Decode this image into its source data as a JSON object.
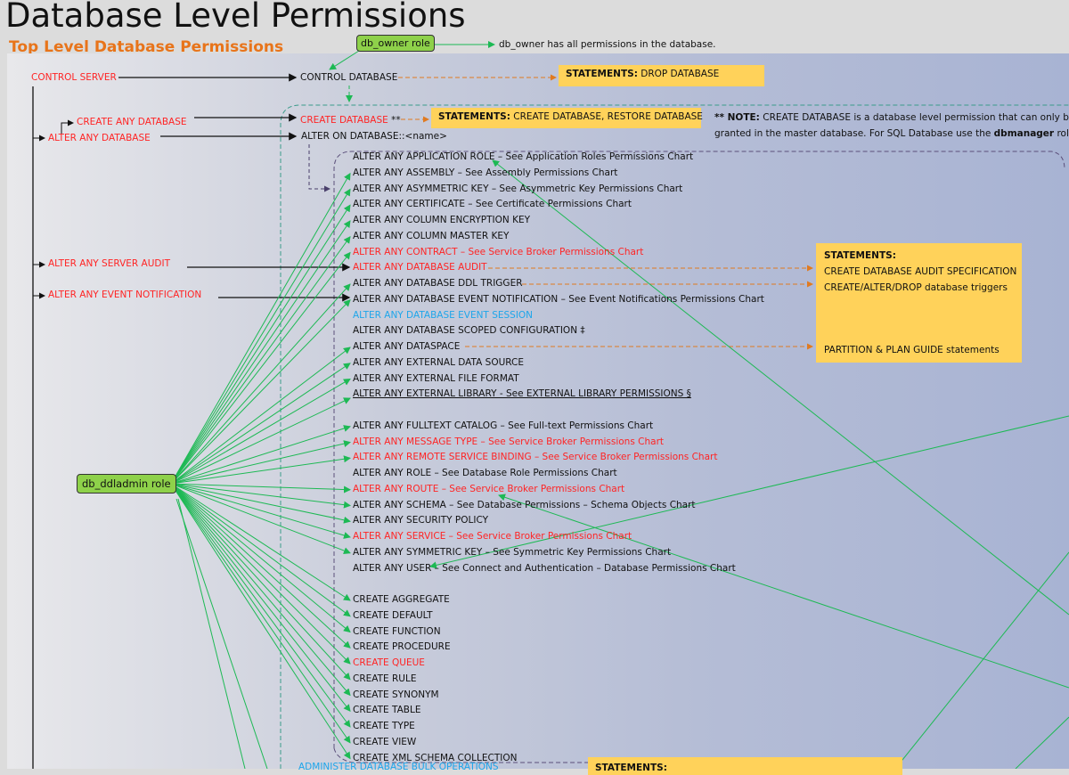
{
  "title": "Database Level Permissions",
  "subtitle": "Top Level Database Permissions",
  "roles": {
    "db_owner": "db_owner role",
    "db_owner_note": "db_owner has all permissions in the database.",
    "db_ddladmin": "db_ddladmin role"
  },
  "server_perms": {
    "control_server": "CONTROL SERVER",
    "create_any_database": "CREATE ANY DATABASE",
    "alter_any_database": "ALTER ANY DATABASE",
    "alter_any_server_audit": "ALTER ANY SERVER AUDIT",
    "alter_any_event_notification": "ALTER ANY EVENT NOTIFICATION"
  },
  "db_perms": {
    "control_database": "CONTROL DATABASE",
    "create_database": "CREATE DATABASE",
    "create_database_mark": "**",
    "alter_on_database": "ALTER ON DATABASE::<name>"
  },
  "statements": {
    "label": "STATEMENTS:",
    "drop": "DROP DATABASE",
    "create": "CREATE DATABASE, RESTORE DATABASE",
    "audit_box": [
      "CREATE DATABASE AUDIT SPECIFICATION",
      "CREATE/ALTER/DROP database triggers",
      "PARTITION & PLAN GUIDE statements"
    ]
  },
  "note": {
    "prefix": "** NOTE:",
    "line1": "CREATE DATABASE is a database level permission that can only be",
    "line2a": "granted in the master database. For SQL Database use the",
    "line2b": "dbmanager",
    "line2c": "role."
  },
  "colors": {
    "black": "#111111",
    "red": "#ff2424",
    "blue": "#1ea6ea",
    "role": "#8ed14a",
    "statement": "#ffd25a",
    "arrow_green": "#1db954",
    "arrow_orange": "#e07a20"
  },
  "alter_group_1": [
    {
      "text": "ALTER ANY APPLICATION ROLE – See Application Roles Permissions Chart",
      "color": "black"
    },
    {
      "text": "ALTER ANY ASSEMBLY – See Assembly Permissions Chart",
      "color": "black"
    },
    {
      "text": "ALTER ANY ASYMMETRIC KEY – See Asymmetric Key Permissions Chart",
      "color": "black"
    },
    {
      "text": "ALTER ANY CERTIFICATE – See Certificate Permissions Chart",
      "color": "black"
    },
    {
      "text": "ALTER ANY COLUMN ENCRYPTION KEY",
      "color": "black"
    },
    {
      "text": "ALTER ANY COLUMN MASTER KEY",
      "color": "black"
    },
    {
      "text": "ALTER ANY CONTRACT – See Service Broker Permissions Chart",
      "color": "red"
    },
    {
      "text": "ALTER ANY DATABASE AUDIT",
      "color": "red"
    },
    {
      "text": "ALTER ANY DATABASE DDL TRIGGER",
      "color": "black"
    },
    {
      "text": "ALTER ANY DATABASE EVENT NOTIFICATION – See Event Notifications Permissions Chart",
      "color": "black"
    },
    {
      "text": "ALTER ANY DATABASE EVENT SESSION",
      "color": "blue"
    },
    {
      "text": "ALTER ANY DATABASE SCOPED CONFIGURATION ‡",
      "color": "black"
    },
    {
      "text": "ALTER ANY DATASPACE",
      "color": "black"
    },
    {
      "text": "ALTER ANY EXTERNAL DATA SOURCE",
      "color": "black"
    },
    {
      "text": "ALTER ANY EXTERNAL FILE FORMAT",
      "color": "black"
    },
    {
      "text": "ALTER ANY EXTERNAL LIBRARY - See EXTERNAL LIBRARY PERMISSIONS §",
      "color": "black",
      "underline": true
    }
  ],
  "alter_group_2": [
    {
      "text": "ALTER ANY FULLTEXT CATALOG – See Full-text Permissions Chart",
      "color": "black"
    },
    {
      "text": "ALTER ANY MESSAGE TYPE – See Service Broker Permissions Chart",
      "color": "red"
    },
    {
      "text": "ALTER ANY REMOTE SERVICE BINDING – See Service Broker Permissions Chart",
      "color": "red"
    },
    {
      "text": "ALTER ANY ROLE – See Database Role Permissions Chart",
      "color": "black"
    },
    {
      "text": "ALTER ANY ROUTE – See Service Broker Permissions Chart",
      "color": "red"
    },
    {
      "text": "ALTER ANY SCHEMA – See Database Permissions – Schema Objects Chart",
      "color": "black"
    },
    {
      "text": "ALTER ANY SECURITY POLICY",
      "color": "black"
    },
    {
      "text": "ALTER ANY SERVICE – See Service Broker Permissions Chart",
      "color": "red"
    },
    {
      "text": "ALTER ANY SYMMETRIC KEY – See Symmetric Key Permissions Chart",
      "color": "black"
    },
    {
      "text": "ALTER ANY USER – See Connect and Authentication – Database Permissions Chart",
      "color": "black"
    }
  ],
  "create_group": [
    {
      "text": "CREATE AGGREGATE",
      "color": "black"
    },
    {
      "text": "CREATE DEFAULT",
      "color": "black"
    },
    {
      "text": "CREATE FUNCTION",
      "color": "black"
    },
    {
      "text": "CREATE PROCEDURE",
      "color": "black"
    },
    {
      "text": "CREATE QUEUE",
      "color": "red"
    },
    {
      "text": "CREATE RULE",
      "color": "black"
    },
    {
      "text": "CREATE SYNONYM",
      "color": "black"
    },
    {
      "text": "CREATE TABLE",
      "color": "black"
    },
    {
      "text": "CREATE TYPE",
      "color": "black"
    },
    {
      "text": "CREATE VIEW",
      "color": "black"
    },
    {
      "text": "CREATE XML SCHEMA COLLECTION",
      "color": "black"
    }
  ],
  "bottom": {
    "administer_bulk": "ADMINISTER DATABASE BULK OPERATIONS",
    "statements_cut": "STATEMENTS:"
  }
}
